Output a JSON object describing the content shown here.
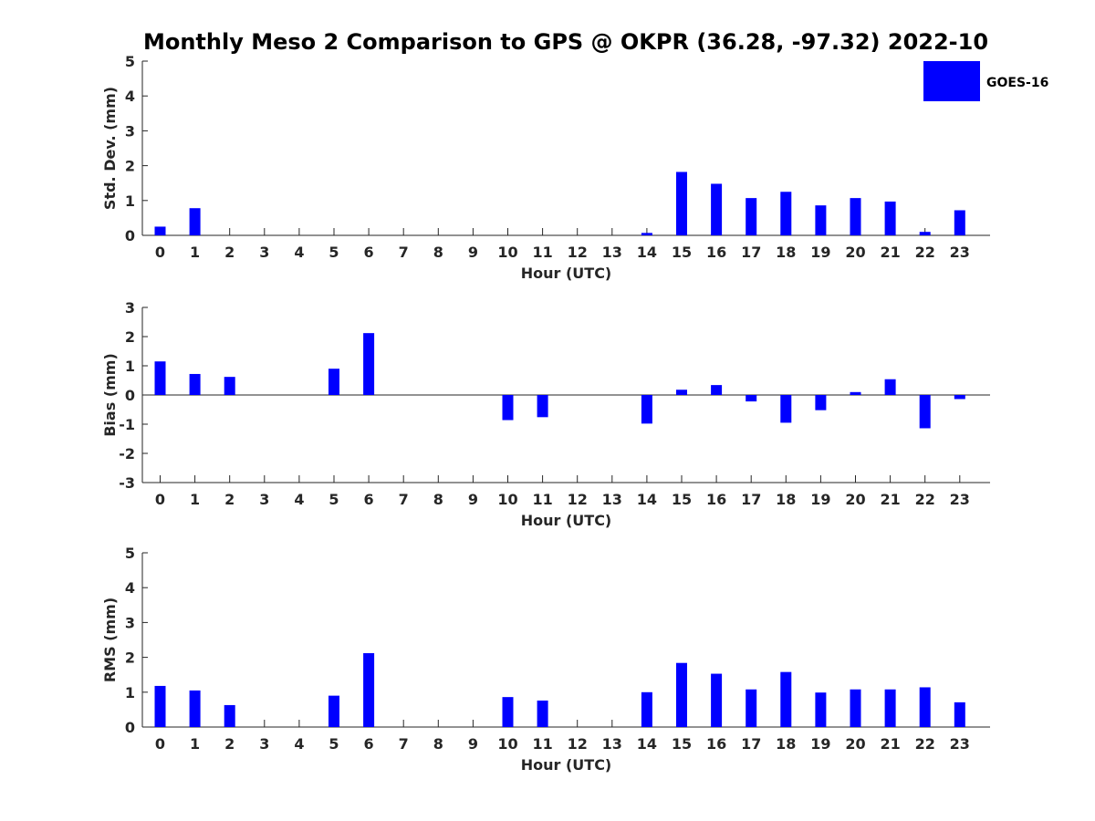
{
  "title": "Monthly Meso 2 Comparison to GPS @ OKPR (36.28, -97.32) 2022-10",
  "legend": {
    "label": "GOES-16",
    "color": "#0000ff"
  },
  "chart_data": [
    {
      "type": "bar",
      "name": "std-dev",
      "ylabel": "Std. Dev. (mm)",
      "xlabel": "Hour (UTC)",
      "ylim": [
        0,
        5
      ],
      "yticks": [
        0,
        1,
        2,
        3,
        4,
        5
      ],
      "categories": [
        "0",
        "1",
        "2",
        "3",
        "4",
        "5",
        "6",
        "7",
        "8",
        "9",
        "10",
        "11",
        "12",
        "13",
        "14",
        "15",
        "16",
        "17",
        "18",
        "19",
        "20",
        "21",
        "22",
        "23"
      ],
      "series": [
        {
          "name": "GOES-16",
          "values": [
            0.25,
            0.78,
            null,
            null,
            null,
            null,
            null,
            null,
            null,
            null,
            null,
            null,
            null,
            null,
            0.07,
            1.82,
            1.48,
            1.07,
            1.25,
            0.86,
            1.07,
            0.97,
            0.1,
            0.72
          ]
        }
      ]
    },
    {
      "type": "bar",
      "name": "bias",
      "ylabel": "Bias (mm)",
      "xlabel": "Hour (UTC)",
      "ylim": [
        -3,
        3
      ],
      "yticks": [
        -3,
        -2,
        -1,
        0,
        1,
        2,
        3
      ],
      "categories": [
        "0",
        "1",
        "2",
        "3",
        "4",
        "5",
        "6",
        "7",
        "8",
        "9",
        "10",
        "11",
        "12",
        "13",
        "14",
        "15",
        "16",
        "17",
        "18",
        "19",
        "20",
        "21",
        "22",
        "23"
      ],
      "series": [
        {
          "name": "GOES-16",
          "values": [
            1.15,
            0.72,
            0.62,
            null,
            null,
            0.9,
            2.12,
            null,
            null,
            null,
            -0.86,
            -0.76,
            null,
            null,
            -0.98,
            0.18,
            0.34,
            -0.22,
            -0.95,
            -0.52,
            0.1,
            0.54,
            -1.14,
            -0.14
          ]
        }
      ]
    },
    {
      "type": "bar",
      "name": "rms",
      "ylabel": "RMS (mm)",
      "xlabel": "Hour (UTC)",
      "ylim": [
        0,
        5
      ],
      "yticks": [
        0,
        1,
        2,
        3,
        4,
        5
      ],
      "categories": [
        "0",
        "1",
        "2",
        "3",
        "4",
        "5",
        "6",
        "7",
        "8",
        "9",
        "10",
        "11",
        "12",
        "13",
        "14",
        "15",
        "16",
        "17",
        "18",
        "19",
        "20",
        "21",
        "22",
        "23"
      ],
      "series": [
        {
          "name": "GOES-16",
          "values": [
            1.18,
            1.05,
            0.63,
            null,
            null,
            0.9,
            2.12,
            null,
            null,
            null,
            0.86,
            0.76,
            null,
            null,
            1.0,
            1.84,
            1.53,
            1.08,
            1.58,
            0.99,
            1.08,
            1.08,
            1.14,
            0.71
          ]
        }
      ]
    }
  ]
}
